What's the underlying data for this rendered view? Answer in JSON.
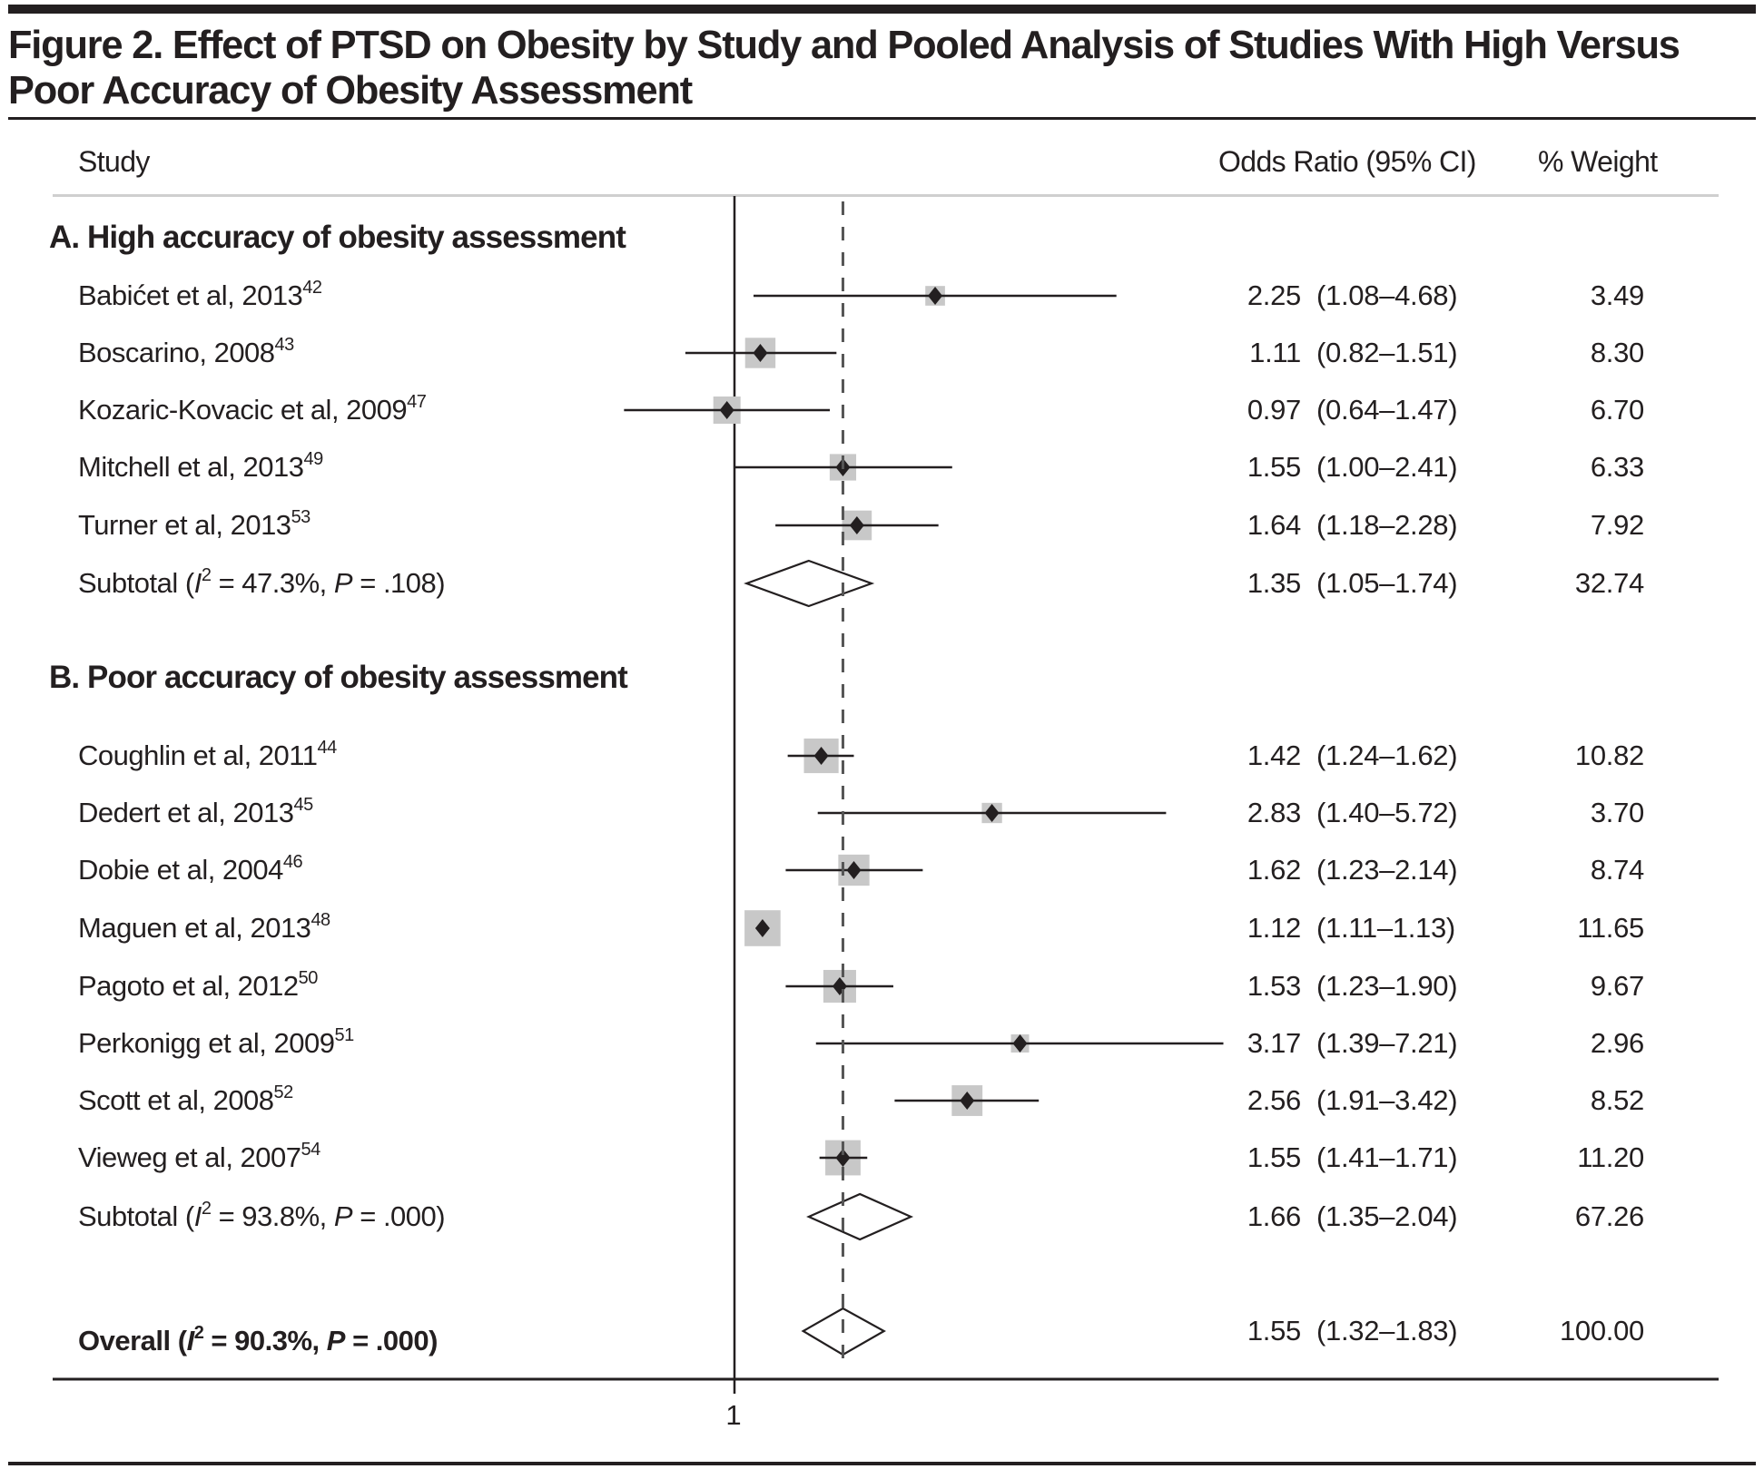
{
  "figure": {
    "title_line1": "Figure 2. Effect of PTSD on Obesity by Study and Pooled Analysis of Studies With High Versus",
    "title_line2": "Poor Accuracy of Obesity Assessment"
  },
  "columns": {
    "study": "Study",
    "odds_ratio": "Odds Ratio (95% CI)",
    "weight": "% Weight"
  },
  "colors": {
    "ink": "#231f20",
    "box": "#c8c8c8",
    "dashed": "#555555",
    "header_rule": "#cfcfcf"
  },
  "chart_data": {
    "type": "forest",
    "title": "Figure 2. Effect of PTSD on Obesity by Study and Pooled Analysis of Studies With High Versus Poor Accuracy of Obesity Assessment",
    "xscale": "log",
    "reference_line": 1,
    "overall_line": 1.55,
    "x_ticks": [
      {
        "value": 1,
        "label": "1"
      }
    ],
    "groups": [
      {
        "label": "A. High accuracy of obesity assessment",
        "studies": [
          {
            "name": "Babićet et al, 2013",
            "ref": "42",
            "or": 2.25,
            "lo": 1.08,
            "hi": 4.68,
            "or_text": "2.25",
            "ci_text": "(1.08–4.68)",
            "weight": 3.49,
            "weight_text": "3.49"
          },
          {
            "name": "Boscarino, 2008",
            "ref": "43",
            "or": 1.11,
            "lo": 0.82,
            "hi": 1.51,
            "or_text": "1.11",
            "ci_text": "(0.82–1.51)",
            "weight": 8.3,
            "weight_text": "8.30"
          },
          {
            "name": "Kozaric-Kovacic et al, 2009",
            "ref": "47",
            "or": 0.97,
            "lo": 0.64,
            "hi": 1.47,
            "or_text": "0.97",
            "ci_text": "(0.64–1.47)",
            "weight": 6.7,
            "weight_text": "6.70"
          },
          {
            "name": "Mitchell et al, 2013",
            "ref": "49",
            "or": 1.55,
            "lo": 1.0,
            "hi": 2.41,
            "or_text": "1.55",
            "ci_text": "(1.00–2.41)",
            "weight": 6.33,
            "weight_text": "6.33"
          },
          {
            "name": "Turner et al, 2013",
            "ref": "53",
            "or": 1.64,
            "lo": 1.18,
            "hi": 2.28,
            "or_text": "1.64",
            "ci_text": "(1.18–2.28)",
            "weight": 7.92,
            "weight_text": "7.92"
          }
        ],
        "subtotal": {
          "label_prefix": "Subtotal (",
          "i2_symbol": "I",
          "i2_sup": "2",
          "i2_text": " = 47.3%, ",
          "p_symbol": "P",
          "p_text": " = .108)",
          "or": 1.35,
          "lo": 1.05,
          "hi": 1.74,
          "or_text": "1.35",
          "ci_text": "(1.05–1.74)",
          "weight": 32.74,
          "weight_text": "32.74"
        }
      },
      {
        "label": "B. Poor accuracy of obesity assessment",
        "studies": [
          {
            "name": "Coughlin et al, 2011",
            "ref": "44",
            "or": 1.42,
            "lo": 1.24,
            "hi": 1.62,
            "or_text": "1.42",
            "ci_text": "(1.24–1.62)",
            "weight": 10.82,
            "weight_text": "10.82"
          },
          {
            "name": "Dedert et al, 2013",
            "ref": "45",
            "or": 2.83,
            "lo": 1.4,
            "hi": 5.72,
            "or_text": "2.83",
            "ci_text": "(1.40–5.72)",
            "weight": 3.7,
            "weight_text": "3.70"
          },
          {
            "name": "Dobie et al, 2004",
            "ref": "46",
            "or": 1.62,
            "lo": 1.23,
            "hi": 2.14,
            "or_text": "1.62",
            "ci_text": "(1.23–2.14)",
            "weight": 8.74,
            "weight_text": "8.74"
          },
          {
            "name": "Maguen et al, 2013",
            "ref": "48",
            "or": 1.12,
            "lo": 1.11,
            "hi": 1.13,
            "or_text": "1.12",
            "ci_text": "(1.11–1.13)",
            "weight": 11.65,
            "weight_text": "11.65"
          },
          {
            "name": "Pagoto et al, 2012",
            "ref": "50",
            "or": 1.53,
            "lo": 1.23,
            "hi": 1.9,
            "or_text": "1.53",
            "ci_text": "(1.23–1.90)",
            "weight": 9.67,
            "weight_text": "9.67"
          },
          {
            "name": "Perkonigg et al, 2009",
            "ref": "51",
            "or": 3.17,
            "lo": 1.39,
            "hi": 7.21,
            "or_text": "3.17",
            "ci_text": "(1.39–7.21)",
            "weight": 2.96,
            "weight_text": "2.96"
          },
          {
            "name": "Scott et al, 2008",
            "ref": "52",
            "or": 2.56,
            "lo": 1.91,
            "hi": 3.42,
            "or_text": "2.56",
            "ci_text": "(1.91–3.42)",
            "weight": 8.52,
            "weight_text": "8.52"
          },
          {
            "name": "Vieweg et al, 2007",
            "ref": "54",
            "or": 1.55,
            "lo": 1.41,
            "hi": 1.71,
            "or_text": "1.55",
            "ci_text": "(1.41–1.71)",
            "weight": 11.2,
            "weight_text": "11.20"
          }
        ],
        "subtotal": {
          "label_prefix": "Subtotal (",
          "i2_symbol": "I",
          "i2_sup": "2",
          "i2_text": " = 93.8%, ",
          "p_symbol": "P",
          "p_text": " = .000)",
          "or": 1.66,
          "lo": 1.35,
          "hi": 2.04,
          "or_text": "1.66",
          "ci_text": "(1.35–2.04)",
          "weight": 67.26,
          "weight_text": "67.26"
        }
      }
    ],
    "overall": {
      "label_prefix": "Overall (",
      "i2_symbol": "I",
      "i2_sup": "2",
      "i2_text": " = 90.3%, ",
      "p_symbol": "P",
      "p_text": " = .000)",
      "or": 1.55,
      "lo": 1.32,
      "hi": 1.83,
      "or_text": "1.55",
      "ci_text": "(1.32–1.83)",
      "weight": 100.0,
      "weight_text": "100.00"
    }
  }
}
